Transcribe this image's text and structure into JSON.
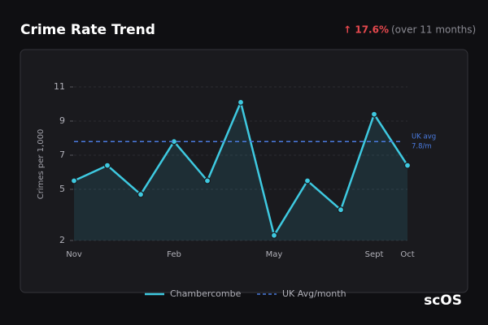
{
  "header": {
    "title": "Crime Rate Trend",
    "change": {
      "value": 17.6,
      "label": "↑ 17.6%"
    },
    "change_note": "(over 11 months)"
  },
  "chart_data": {
    "type": "line",
    "ylabel": "Crimes per 1,000",
    "categories": [
      "Nov",
      null,
      null,
      "Feb",
      null,
      null,
      "May",
      null,
      null,
      "Sept",
      "Oct"
    ],
    "series": [
      {
        "name": "Chambercombe",
        "color": "#3ec9e0",
        "values": [
          5.5,
          6.4,
          4.7,
          7.8,
          5.5,
          10.1,
          2.3,
          5.5,
          3.8,
          9.4,
          6.4
        ]
      }
    ],
    "reference_line": {
      "name": "UK Avg/month",
      "color": "#4a7be0",
      "value": 7.8,
      "label_lines": [
        "UK avg",
        "7.8/m"
      ]
    },
    "ylim": [
      2,
      11
    ],
    "yticks": [
      2,
      5,
      7,
      9,
      11
    ],
    "grid": true
  },
  "watermark": "scOS"
}
